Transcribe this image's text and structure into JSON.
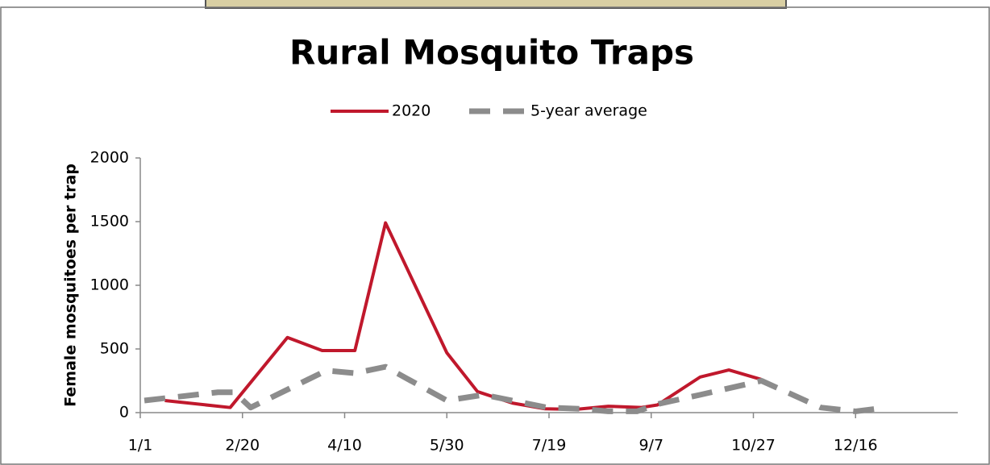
{
  "chart_data": {
    "type": "line",
    "title": "Rural Mosquito Traps",
    "y_label": "Female mosquitoes per trap",
    "xlim": [
      0,
      400
    ],
    "xticks": [
      {
        "value": 0,
        "label": "1/1"
      },
      {
        "value": 50,
        "label": "2/20"
      },
      {
        "value": 100,
        "label": "4/10"
      },
      {
        "value": 150,
        "label": "5/30"
      },
      {
        "value": 200,
        "label": "7/19"
      },
      {
        "value": 250,
        "label": "9/7"
      },
      {
        "value": 300,
        "label": "10/27"
      },
      {
        "value": 350,
        "label": "12/16"
      }
    ],
    "ylim": [
      0,
      2000
    ],
    "yticks": [
      0,
      500,
      1000,
      1500,
      2000
    ],
    "series": [
      {
        "name": "2020",
        "color": "#c0182c",
        "dashed": false,
        "x": [
          12,
          44,
          72,
          89,
          105,
          120,
          135,
          150,
          165,
          182,
          198,
          213,
          229,
          245,
          253,
          274,
          288,
          304
        ],
        "values": [
          95,
          40,
          590,
          487,
          487,
          1490,
          980,
          470,
          165,
          75,
          30,
          25,
          50,
          40,
          60,
          280,
          335,
          260
        ]
      },
      {
        "name": "5-year average",
        "color": "#8c8c8c",
        "dashed": true,
        "x": [
          2,
          38,
          46,
          54,
          91,
          105,
          120,
          150,
          168,
          199,
          215,
          229,
          243,
          254,
          274,
          304,
          333,
          350,
          365
        ],
        "values": [
          95,
          160,
          160,
          40,
          330,
          310,
          360,
          95,
          140,
          40,
          30,
          10,
          10,
          70,
          140,
          250,
          40,
          10,
          40
        ]
      }
    ]
  }
}
